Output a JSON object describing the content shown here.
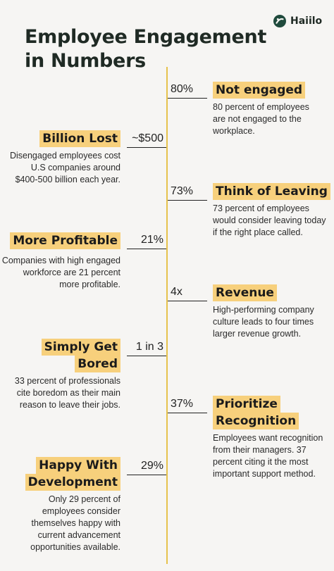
{
  "title": {
    "line1": "Employee Engagement",
    "line2": "in Numbers"
  },
  "brand": {
    "name": "Haiilo",
    "icon": "haiilo-logo-icon",
    "color": "#1f4a3c"
  },
  "colors": {
    "highlight": "#f7d07c",
    "spine": "#e6c24c",
    "background": "#f6f5f3"
  },
  "stats": [
    {
      "value": "80%",
      "heading": [
        "Not engaged"
      ],
      "description": [
        "80 percent of employees",
        "are not engaged to the",
        "workplace."
      ]
    },
    {
      "value": "~$500",
      "heading": [
        "Billion Lost"
      ],
      "description": [
        "Disengaged employees cost",
        "U.S companies around",
        "$400-500 billion each year."
      ]
    },
    {
      "value": "73%",
      "heading": [
        "Think of Leaving"
      ],
      "description": [
        "73 percent of employees",
        "would consider leaving today",
        "if the right place called."
      ]
    },
    {
      "value": "21%",
      "heading": [
        "More Profitable"
      ],
      "description": [
        "Companies with high engaged",
        "workforce are 21 percent",
        "more profitable."
      ]
    },
    {
      "value": "4x",
      "heading": [
        "Revenue"
      ],
      "description": [
        "High-performing company",
        "culture leads to four times",
        "larger revenue growth."
      ]
    },
    {
      "value": "1 in 3",
      "heading": [
        "Simply Get",
        "Bored"
      ],
      "description": [
        "33 percent of professionals",
        "cite boredom as their main",
        "reason to leave their jobs."
      ]
    },
    {
      "value": "37%",
      "heading": [
        "Prioritize",
        "Recognition"
      ],
      "description": [
        "Employees want recognition",
        "from their managers. 37",
        "percent citing it the most",
        "important support method."
      ]
    },
    {
      "value": "29%",
      "heading": [
        "Happy With",
        "Development"
      ],
      "description": [
        "Only 29 percent of",
        "employees consider",
        "themselves happy with",
        "current advancement",
        "opportunities available."
      ]
    }
  ]
}
